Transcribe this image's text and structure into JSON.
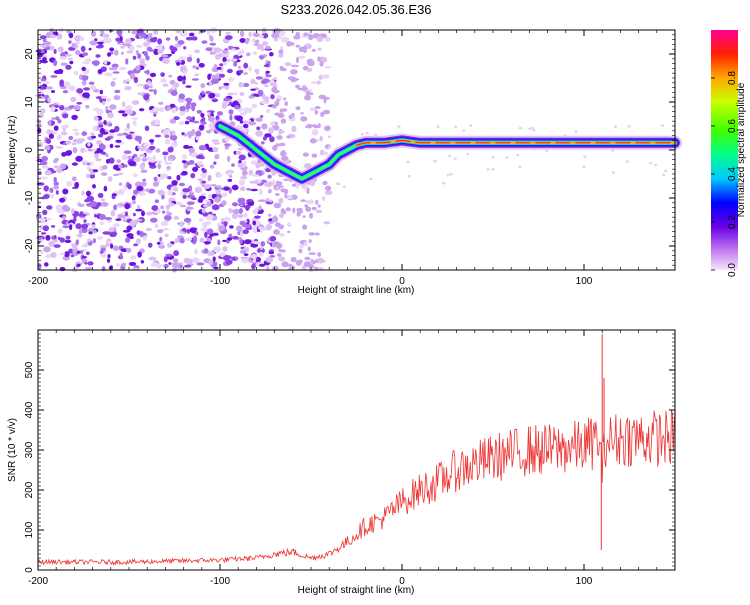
{
  "title": "S233.2026.042.05.36.E36",
  "chart_data": [
    {
      "type": "heatmap",
      "title": "S233.2026.042.05.36.E36",
      "xlabel": "Height of straight line (km)",
      "ylabel": "Frequency (Hz)",
      "xlim": [
        -200,
        150
      ],
      "ylim": [
        -25,
        25
      ],
      "xticks": [
        -200,
        -100,
        0,
        100
      ],
      "yticks": [
        -20,
        -10,
        0,
        10,
        20
      ],
      "colorbar": {
        "label": "Normalized spectral amplitude",
        "range": [
          0,
          1
        ],
        "ticks": [
          0.0,
          0.2,
          0.4,
          0.6,
          0.8
        ]
      },
      "ridge": {
        "x": [
          -100,
          -90,
          -80,
          -70,
          -60,
          -55,
          -50,
          -45,
          -40,
          -35,
          -30,
          -25,
          -20,
          -10,
          0,
          10,
          20,
          50,
          80,
          100,
          110,
          120,
          150
        ],
        "y": [
          5,
          3,
          0,
          -3,
          -5,
          -6,
          -5,
          -4,
          -3,
          -1,
          0,
          1,
          1.5,
          1.5,
          2,
          1.5,
          1.5,
          1.5,
          1.5,
          1.5,
          1.5,
          1.5,
          1.5
        ],
        "amplitude": [
          0.1,
          0.2,
          0.3,
          0.35,
          0.35,
          0.4,
          0.35,
          0.35,
          0.4,
          0.45,
          0.5,
          0.6,
          0.7,
          0.8,
          0.9,
          0.9,
          0.9,
          0.9,
          0.9,
          0.9,
          0.7,
          0.8,
          0.8
        ]
      }
    },
    {
      "type": "line",
      "xlabel": "Height of straight line (km)",
      "ylabel": "SNR (10 * v/v)",
      "xlim": [
        -200,
        150
      ],
      "ylim": [
        0,
        600
      ],
      "xticks": [
        -200,
        -100,
        0,
        100
      ],
      "yticks": [
        0,
        100,
        200,
        300,
        400,
        500
      ],
      "color": "#ee3333",
      "trend": {
        "x": [
          -200,
          -150,
          -100,
          -80,
          -70,
          -60,
          -50,
          -40,
          -30,
          -20,
          -10,
          0,
          10,
          20,
          30,
          40,
          50,
          60,
          70,
          80,
          90,
          100,
          105,
          108,
          110,
          112,
          115,
          120,
          130,
          140,
          150
        ],
        "y": [
          20,
          20,
          25,
          30,
          40,
          45,
          30,
          40,
          70,
          110,
          130,
          170,
          200,
          220,
          250,
          265,
          280,
          290,
          300,
          300,
          305,
          310,
          320,
          330,
          250,
          330,
          320,
          330,
          330,
          330,
          330
        ]
      },
      "spikes": [
        {
          "x": 110,
          "y": 590
        },
        {
          "x": 111,
          "y": 480
        },
        {
          "x": 109.5,
          "y": 50
        }
      ]
    }
  ]
}
